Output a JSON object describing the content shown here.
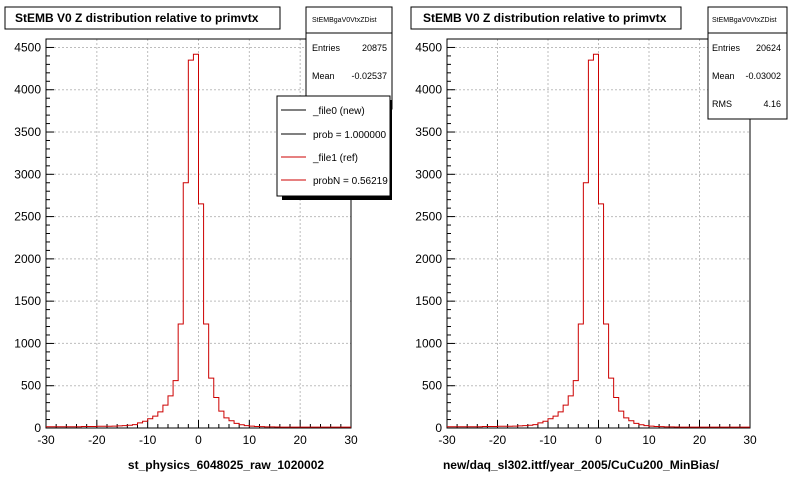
{
  "colors": {
    "new": "#000000",
    "ref": "#cc0000",
    "frame": "#000000",
    "grid": "#bdbdbd"
  },
  "footer": "",
  "chart_data": [
    {
      "type": "line",
      "title": "StEMB V0 Z distribution relative to primvtx",
      "xlabel": "st_physics_6048025_raw_1020002",
      "ylabel": "",
      "xlim": [
        -30,
        30
      ],
      "ylim": [
        0,
        4600
      ],
      "xticks": [
        -30,
        -20,
        -10,
        0,
        10,
        20,
        30
      ],
      "yticks": [
        0,
        500,
        1000,
        1500,
        2000,
        2500,
        3000,
        3500,
        4000,
        4500
      ],
      "grid": true,
      "stats": {
        "name": "StEMBgaV0VtxZDist",
        "rows": [
          {
            "label": "Entries",
            "value": "20875"
          },
          {
            "label": "Mean",
            "value": "-0.02537"
          }
        ]
      },
      "legend": {
        "placement": "top-right",
        "entries": [
          {
            "label": "_file0 (new)",
            "color": "#000000"
          },
          {
            "label": "prob = 1.000000",
            "color": "#000000"
          },
          {
            "label": "_file1 (ref)",
            "color": "#cc0000"
          },
          {
            "label": "probN = 0.56219",
            "color": "#cc0000"
          }
        ]
      },
      "series": [
        {
          "x": [
            -31,
            -30,
            -29,
            -28,
            -27,
            -26,
            -25,
            -24,
            -23,
            -22,
            -21,
            -20,
            -19,
            -18,
            -17,
            -16,
            -15,
            -14,
            -13,
            -12,
            -11,
            -10,
            -9,
            -8,
            -7,
            -6,
            -5,
            -4,
            -3,
            -2,
            -1,
            0,
            1,
            2,
            3,
            4,
            5,
            6,
            7,
            8,
            9,
            10,
            11,
            12,
            13,
            14,
            15,
            16,
            17,
            18,
            19,
            20,
            21,
            22,
            23,
            24,
            25,
            26,
            27,
            28,
            29,
            30
          ],
          "values": [
            15,
            15,
            15,
            15,
            15,
            15,
            15,
            15,
            18,
            18,
            18,
            20,
            20,
            20,
            22,
            25,
            28,
            32,
            40,
            60,
            80,
            110,
            140,
            190,
            270,
            380,
            560,
            1230,
            2900,
            4350,
            4420,
            2650,
            1230,
            590,
            360,
            200,
            120,
            85,
            55,
            38,
            28,
            22,
            18,
            16,
            14,
            13,
            12,
            11,
            10,
            10,
            10,
            10,
            10,
            10,
            10,
            10,
            10,
            10,
            10,
            10,
            10,
            10
          ]
        },
        {
          "x": [
            -31,
            -30,
            -29,
            -28,
            -27,
            -26,
            -25,
            -24,
            -23,
            -22,
            -21,
            -20,
            -19,
            -18,
            -17,
            -16,
            -15,
            -14,
            -13,
            -12,
            -11,
            -10,
            -9,
            -8,
            -7,
            -6,
            -5,
            -4,
            -3,
            -2,
            -1,
            0,
            1,
            2,
            3,
            4,
            5,
            6,
            7,
            8,
            9,
            10,
            11,
            12,
            13,
            14,
            15,
            16,
            17,
            18,
            19,
            20,
            21,
            22,
            23,
            24,
            25,
            26,
            27,
            28,
            29,
            30
          ],
          "values": [
            15,
            15,
            15,
            15,
            15,
            15,
            15,
            15,
            18,
            18,
            18,
            20,
            20,
            20,
            22,
            25,
            28,
            32,
            40,
            60,
            80,
            110,
            140,
            190,
            270,
            380,
            560,
            1230,
            2900,
            4350,
            4420,
            2650,
            1230,
            590,
            360,
            200,
            120,
            85,
            55,
            38,
            28,
            22,
            18,
            16,
            14,
            13,
            12,
            11,
            10,
            10,
            10,
            10,
            10,
            10,
            10,
            10,
            10,
            10,
            10,
            10,
            10,
            10
          ]
        }
      ]
    },
    {
      "type": "line",
      "title": "StEMB V0 Z distribution relative to primvtx",
      "xlabel": "new/daq_sl302.ittf/year_2005/CuCu200_MinBias/",
      "ylabel": "",
      "xlim": [
        -30,
        30
      ],
      "ylim": [
        0,
        4600
      ],
      "xticks": [
        -30,
        -20,
        -10,
        0,
        10,
        20,
        30
      ],
      "yticks": [
        0,
        500,
        1000,
        1500,
        2000,
        2500,
        3000,
        3500,
        4000,
        4500
      ],
      "grid": true,
      "stats": {
        "name": "StEMBgaV0VtxZDist",
        "rows": [
          {
            "label": "Entries",
            "value": "20624"
          },
          {
            "label": "Mean",
            "value": "-0.03002"
          },
          {
            "label": "RMS",
            "value": "4.16"
          }
        ]
      },
      "series": [
        {
          "x": [
            -31,
            -30,
            -29,
            -28,
            -27,
            -26,
            -25,
            -24,
            -23,
            -22,
            -21,
            -20,
            -19,
            -18,
            -17,
            -16,
            -15,
            -14,
            -13,
            -12,
            -11,
            -10,
            -9,
            -8,
            -7,
            -6,
            -5,
            -4,
            -3,
            -2,
            -1,
            0,
            1,
            2,
            3,
            4,
            5,
            6,
            7,
            8,
            9,
            10,
            11,
            12,
            13,
            14,
            15,
            16,
            17,
            18,
            19,
            20,
            21,
            22,
            23,
            24,
            25,
            26,
            27,
            28,
            29,
            30
          ],
          "values": [
            15,
            15,
            15,
            15,
            15,
            15,
            15,
            15,
            18,
            18,
            18,
            20,
            20,
            20,
            22,
            25,
            28,
            32,
            40,
            60,
            80,
            110,
            140,
            190,
            270,
            380,
            560,
            1230,
            2900,
            4350,
            4420,
            2650,
            1230,
            590,
            360,
            200,
            120,
            85,
            55,
            38,
            28,
            22,
            18,
            16,
            14,
            13,
            12,
            11,
            10,
            10,
            10,
            10,
            10,
            10,
            10,
            10,
            10,
            10,
            10,
            10,
            10,
            10
          ]
        }
      ]
    }
  ]
}
